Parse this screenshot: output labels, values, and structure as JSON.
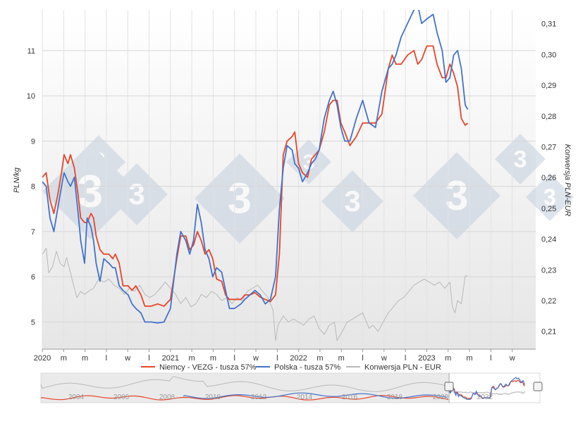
{
  "chart_data": {
    "type": "line",
    "ylabel_left": "PLN/kg",
    "ylabel_right": "Konwersja PLN-EUR",
    "y_left_ticks": [
      "5",
      "6",
      "7",
      "8",
      "9",
      "10",
      "11"
    ],
    "y_right_ticks": [
      "0,21",
      "0,22",
      "0,23",
      "0,24",
      "0,25",
      "0,26",
      "0,27",
      "0,28",
      "0,29",
      "0,30",
      "0,31"
    ],
    "x_tick_labels": [
      "2020",
      "m",
      "m",
      "l",
      "w",
      "l",
      "2021",
      "m",
      "m",
      "l",
      "w",
      "l",
      "2022",
      "m",
      "m",
      "l",
      "w",
      "l",
      "2023",
      "m",
      "m",
      "l",
      "w"
    ],
    "ylim_left": [
      4.4,
      11.9
    ],
    "ylim_right": [
      0.2042,
      0.3145
    ],
    "x_range": [
      2020.0,
      2023.85
    ],
    "grid": true,
    "legend_position": "bottom",
    "series": [
      {
        "name": "Niemcy - VEZG - tusza 57%",
        "color": "#e8452a",
        "axis": "left",
        "points": [
          [
            2020.0,
            8.2
          ],
          [
            2020.03,
            8.3
          ],
          [
            2020.06,
            7.7
          ],
          [
            2020.09,
            7.4
          ],
          [
            2020.12,
            7.8
          ],
          [
            2020.15,
            8.3
          ],
          [
            2020.17,
            8.7
          ],
          [
            2020.2,
            8.5
          ],
          [
            2020.22,
            8.7
          ],
          [
            2020.25,
            8.4
          ],
          [
            2020.28,
            7.8
          ],
          [
            2020.3,
            7.3
          ],
          [
            2020.33,
            7.2
          ],
          [
            2020.35,
            7.2
          ],
          [
            2020.38,
            7.4
          ],
          [
            2020.4,
            7.3
          ],
          [
            2020.42,
            6.9
          ],
          [
            2020.45,
            6.6
          ],
          [
            2020.48,
            6.5
          ],
          [
            2020.52,
            6.5
          ],
          [
            2020.55,
            6.4
          ],
          [
            2020.57,
            6.5
          ],
          [
            2020.6,
            6.3
          ],
          [
            2020.63,
            5.8
          ],
          [
            2020.67,
            5.8
          ],
          [
            2020.7,
            5.7
          ],
          [
            2020.73,
            5.8
          ],
          [
            2020.77,
            5.6
          ],
          [
            2020.8,
            5.35
          ],
          [
            2020.85,
            5.35
          ],
          [
            2020.9,
            5.4
          ],
          [
            2020.95,
            5.35
          ],
          [
            2021.0,
            5.5
          ],
          [
            2021.05,
            6.4
          ],
          [
            2021.08,
            6.9
          ],
          [
            2021.12,
            6.9
          ],
          [
            2021.15,
            6.6
          ],
          [
            2021.18,
            6.7
          ],
          [
            2021.21,
            7.0
          ],
          [
            2021.24,
            6.8
          ],
          [
            2021.27,
            6.5
          ],
          [
            2021.3,
            6.6
          ],
          [
            2021.33,
            6.4
          ],
          [
            2021.36,
            5.95
          ],
          [
            2021.4,
            5.9
          ],
          [
            2021.43,
            5.6
          ],
          [
            2021.46,
            5.5
          ],
          [
            2021.5,
            5.5
          ],
          [
            2021.55,
            5.5
          ],
          [
            2021.58,
            5.6
          ],
          [
            2021.62,
            5.6
          ],
          [
            2021.66,
            5.65
          ],
          [
            2021.7,
            5.55
          ],
          [
            2021.74,
            5.5
          ],
          [
            2021.78,
            5.45
          ],
          [
            2021.82,
            5.6
          ],
          [
            2021.85,
            6.5
          ],
          [
            2021.88,
            8.7
          ],
          [
            2021.91,
            9.0
          ],
          [
            2021.95,
            9.1
          ],
          [
            2021.97,
            9.2
          ],
          [
            2022.0,
            8.5
          ],
          [
            2022.03,
            8.3
          ],
          [
            2022.07,
            8.2
          ],
          [
            2022.1,
            8.6
          ],
          [
            2022.13,
            8.7
          ],
          [
            2022.16,
            8.8
          ],
          [
            2022.2,
            9.2
          ],
          [
            2022.24,
            9.8
          ],
          [
            2022.27,
            9.9
          ],
          [
            2022.3,
            9.9
          ],
          [
            2022.33,
            9.4
          ],
          [
            2022.36,
            9.2
          ],
          [
            2022.4,
            8.9
          ],
          [
            2022.45,
            9.1
          ],
          [
            2022.5,
            9.4
          ],
          [
            2022.55,
            9.4
          ],
          [
            2022.6,
            9.4
          ],
          [
            2022.65,
            9.6
          ],
          [
            2022.7,
            10.6
          ],
          [
            2022.73,
            10.9
          ],
          [
            2022.76,
            10.7
          ],
          [
            2022.8,
            10.7
          ],
          [
            2022.85,
            10.9
          ],
          [
            2022.9,
            11.0
          ],
          [
            2022.93,
            10.7
          ],
          [
            2022.96,
            10.8
          ],
          [
            2023.0,
            11.1
          ],
          [
            2023.05,
            11.1
          ],
          [
            2023.08,
            10.7
          ],
          [
            2023.12,
            10.4
          ],
          [
            2023.15,
            10.4
          ],
          [
            2023.18,
            10.7
          ],
          [
            2023.21,
            10.5
          ],
          [
            2023.24,
            10.2
          ],
          [
            2023.27,
            9.5
          ],
          [
            2023.3,
            9.35
          ],
          [
            2023.32,
            9.4
          ]
        ]
      },
      {
        "name": "Polska - tusza 57%",
        "color": "#4372c9",
        "axis": "left",
        "points": [
          [
            2020.0,
            8.1
          ],
          [
            2020.03,
            8.0
          ],
          [
            2020.06,
            7.3
          ],
          [
            2020.09,
            7.0
          ],
          [
            2020.12,
            7.5
          ],
          [
            2020.15,
            8.0
          ],
          [
            2020.17,
            8.3
          ],
          [
            2020.2,
            8.1
          ],
          [
            2020.22,
            8.0
          ],
          [
            2020.25,
            8.2
          ],
          [
            2020.28,
            7.4
          ],
          [
            2020.3,
            6.8
          ],
          [
            2020.33,
            6.3
          ],
          [
            2020.35,
            7.3
          ],
          [
            2020.38,
            7.1
          ],
          [
            2020.4,
            6.8
          ],
          [
            2020.42,
            6.3
          ],
          [
            2020.45,
            5.9
          ],
          [
            2020.48,
            6.4
          ],
          [
            2020.52,
            6.3
          ],
          [
            2020.55,
            6.2
          ],
          [
            2020.57,
            6.2
          ],
          [
            2020.6,
            5.8
          ],
          [
            2020.63,
            5.7
          ],
          [
            2020.67,
            5.6
          ],
          [
            2020.7,
            5.4
          ],
          [
            2020.73,
            5.3
          ],
          [
            2020.77,
            5.2
          ],
          [
            2020.8,
            5.0
          ],
          [
            2020.85,
            5.0
          ],
          [
            2020.9,
            4.98
          ],
          [
            2020.95,
            5.0
          ],
          [
            2021.0,
            5.3
          ],
          [
            2021.05,
            6.5
          ],
          [
            2021.08,
            7.0
          ],
          [
            2021.12,
            6.8
          ],
          [
            2021.15,
            6.5
          ],
          [
            2021.18,
            6.8
          ],
          [
            2021.21,
            7.6
          ],
          [
            2021.24,
            7.2
          ],
          [
            2021.27,
            6.6
          ],
          [
            2021.3,
            6.4
          ],
          [
            2021.33,
            6.0
          ],
          [
            2021.36,
            6.2
          ],
          [
            2021.4,
            6.1
          ],
          [
            2021.43,
            5.7
          ],
          [
            2021.46,
            5.3
          ],
          [
            2021.5,
            5.3
          ],
          [
            2021.55,
            5.4
          ],
          [
            2021.58,
            5.5
          ],
          [
            2021.62,
            5.6
          ],
          [
            2021.66,
            5.7
          ],
          [
            2021.7,
            5.6
          ],
          [
            2021.74,
            5.4
          ],
          [
            2021.78,
            5.5
          ],
          [
            2021.82,
            6.0
          ],
          [
            2021.85,
            7.5
          ],
          [
            2021.88,
            8.4
          ],
          [
            2021.91,
            8.9
          ],
          [
            2021.95,
            8.8
          ],
          [
            2021.97,
            8.5
          ],
          [
            2022.0,
            8.4
          ],
          [
            2022.03,
            8.1
          ],
          [
            2022.07,
            8.3
          ],
          [
            2022.1,
            8.5
          ],
          [
            2022.13,
            8.6
          ],
          [
            2022.16,
            8.8
          ],
          [
            2022.2,
            9.5
          ],
          [
            2022.24,
            9.9
          ],
          [
            2022.27,
            10.1
          ],
          [
            2022.3,
            9.8
          ],
          [
            2022.33,
            9.3
          ],
          [
            2022.36,
            9.0
          ],
          [
            2022.4,
            9.0
          ],
          [
            2022.45,
            9.5
          ],
          [
            2022.5,
            9.9
          ],
          [
            2022.55,
            9.4
          ],
          [
            2022.6,
            9.3
          ],
          [
            2022.65,
            10.1
          ],
          [
            2022.7,
            10.6
          ],
          [
            2022.73,
            10.7
          ],
          [
            2022.76,
            10.9
          ],
          [
            2022.8,
            11.3
          ],
          [
            2022.85,
            11.6
          ],
          [
            2022.9,
            11.9
          ],
          [
            2022.93,
            12.0
          ],
          [
            2022.96,
            11.6
          ],
          [
            2023.0,
            11.7
          ],
          [
            2023.05,
            11.8
          ],
          [
            2023.08,
            11.4
          ],
          [
            2023.12,
            11.0
          ],
          [
            2023.15,
            10.3
          ],
          [
            2023.18,
            10.4
          ],
          [
            2023.21,
            10.9
          ],
          [
            2023.24,
            11.0
          ],
          [
            2023.27,
            10.6
          ],
          [
            2023.3,
            9.8
          ],
          [
            2023.32,
            9.7
          ]
        ]
      },
      {
        "name": "Konwersja PLN - EUR",
        "color": "#b9b9b9",
        "axis": "right",
        "points": [
          [
            2020.0,
            0.235
          ],
          [
            2020.03,
            0.237
          ],
          [
            2020.05,
            0.229
          ],
          [
            2020.08,
            0.231
          ],
          [
            2020.11,
            0.236
          ],
          [
            2020.14,
            0.232
          ],
          [
            2020.17,
            0.231
          ],
          [
            2020.19,
            0.234
          ],
          [
            2020.22,
            0.229
          ],
          [
            2020.25,
            0.224
          ],
          [
            2020.27,
            0.221
          ],
          [
            2020.3,
            0.223
          ],
          [
            2020.33,
            0.222
          ],
          [
            2020.36,
            0.223
          ],
          [
            2020.4,
            0.224
          ],
          [
            2020.44,
            0.227
          ],
          [
            2020.48,
            0.226
          ],
          [
            2020.52,
            0.227
          ],
          [
            2020.56,
            0.225
          ],
          [
            2020.6,
            0.224
          ],
          [
            2020.64,
            0.222
          ],
          [
            2020.68,
            0.224
          ],
          [
            2020.72,
            0.223
          ],
          [
            2020.76,
            0.225
          ],
          [
            2020.8,
            0.222
          ],
          [
            2020.84,
            0.221
          ],
          [
            2020.88,
            0.222
          ],
          [
            2020.92,
            0.224
          ],
          [
            2020.96,
            0.226
          ],
          [
            2021.0,
            0.224
          ],
          [
            2021.04,
            0.222
          ],
          [
            2021.08,
            0.219
          ],
          [
            2021.12,
            0.221
          ],
          [
            2021.16,
            0.218
          ],
          [
            2021.2,
            0.219
          ],
          [
            2021.24,
            0.222
          ],
          [
            2021.28,
            0.221
          ],
          [
            2021.32,
            0.223
          ],
          [
            2021.36,
            0.222
          ],
          [
            2021.4,
            0.22
          ],
          [
            2021.44,
            0.221
          ],
          [
            2021.48,
            0.219
          ],
          [
            2021.52,
            0.221
          ],
          [
            2021.56,
            0.22
          ],
          [
            2021.6,
            0.223
          ],
          [
            2021.64,
            0.224
          ],
          [
            2021.68,
            0.225
          ],
          [
            2021.72,
            0.223
          ],
          [
            2021.76,
            0.221
          ],
          [
            2021.8,
            0.217
          ],
          [
            2021.82,
            0.207
          ],
          [
            2021.84,
            0.212
          ],
          [
            2021.88,
            0.215
          ],
          [
            2021.92,
            0.213
          ],
          [
            2021.96,
            0.214
          ],
          [
            2022.0,
            0.213
          ],
          [
            2022.04,
            0.212
          ],
          [
            2022.08,
            0.214
          ],
          [
            2022.12,
            0.215
          ],
          [
            2022.16,
            0.211
          ],
          [
            2022.2,
            0.209
          ],
          [
            2022.24,
            0.212
          ],
          [
            2022.28,
            0.213
          ],
          [
            2022.3,
            0.207
          ],
          [
            2022.34,
            0.21
          ],
          [
            2022.38,
            0.213
          ],
          [
            2022.42,
            0.214
          ],
          [
            2022.46,
            0.215
          ],
          [
            2022.5,
            0.216
          ],
          [
            2022.55,
            0.211
          ],
          [
            2022.58,
            0.212
          ],
          [
            2022.62,
            0.21
          ],
          [
            2022.66,
            0.213
          ],
          [
            2022.7,
            0.216
          ],
          [
            2022.74,
            0.218
          ],
          [
            2022.78,
            0.22
          ],
          [
            2022.82,
            0.221
          ],
          [
            2022.86,
            0.223
          ],
          [
            2022.9,
            0.225
          ],
          [
            2022.94,
            0.226
          ],
          [
            2022.98,
            0.227
          ],
          [
            2023.02,
            0.226
          ],
          [
            2023.06,
            0.225
          ],
          [
            2023.1,
            0.226
          ],
          [
            2023.14,
            0.224
          ],
          [
            2023.18,
            0.226
          ],
          [
            2023.2,
            0.218
          ],
          [
            2023.22,
            0.216
          ],
          [
            2023.24,
            0.22
          ],
          [
            2023.27,
            0.219
          ],
          [
            2023.3,
            0.228
          ],
          [
            2023.32,
            0.228
          ]
        ]
      }
    ]
  },
  "navigator": {
    "year_labels": [
      "2004",
      "2006",
      "2008",
      "2010",
      "2012",
      "2014",
      "2016",
      "2018",
      "2020",
      "2022"
    ]
  }
}
